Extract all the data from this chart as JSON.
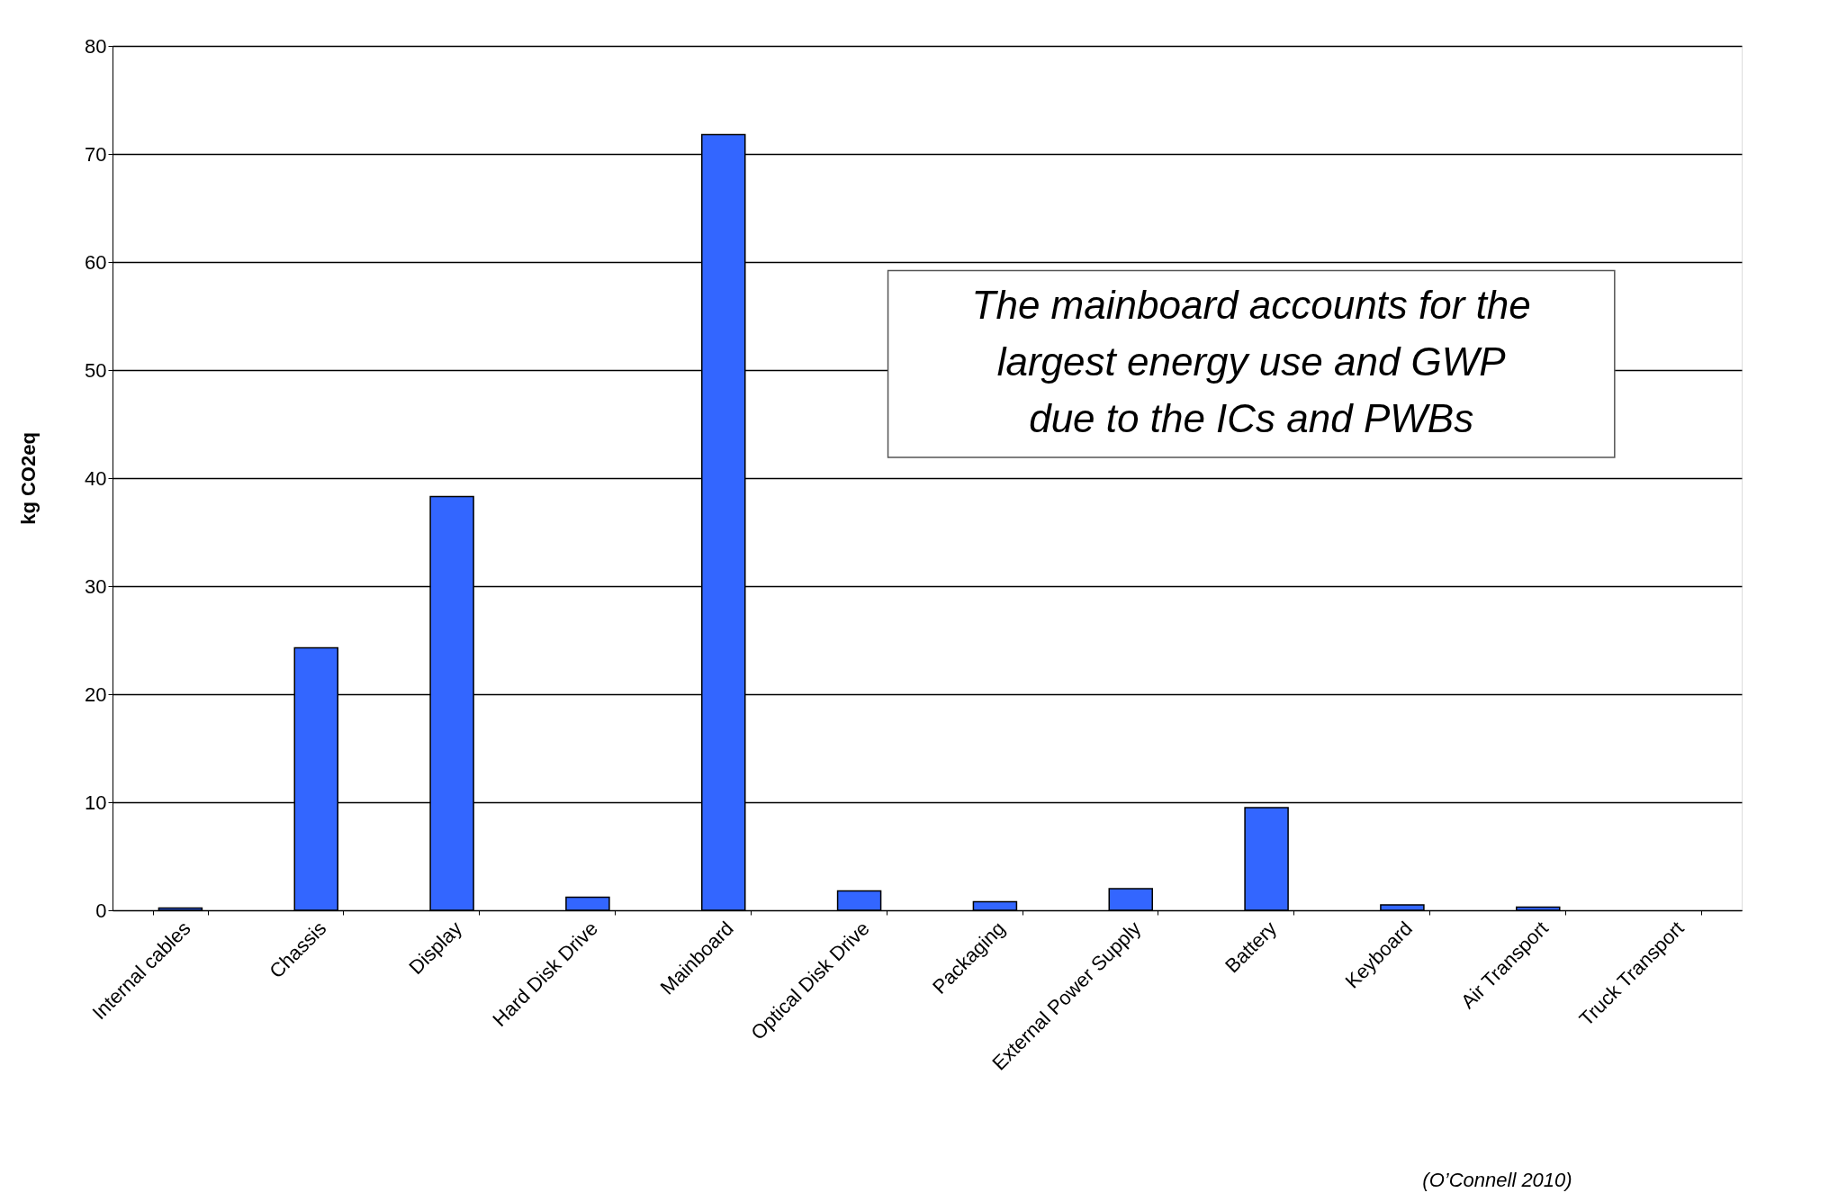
{
  "chart_data": {
    "type": "bar",
    "ylabel": "kg CO2eq",
    "categories": [
      "Internal cables",
      "Chassis",
      "Display",
      "Hard Disk Drive",
      "Mainboard",
      "Optical Disk Drive",
      "Packaging",
      "External Power Supply",
      "Battery",
      "Keyboard",
      "Air Transport",
      "Truck Transport"
    ],
    "values": [
      0.2,
      24.3,
      38.3,
      1.2,
      71.8,
      1.8,
      0.8,
      2.0,
      9.5,
      0.5,
      0.3,
      0
    ],
    "color": "#3366ff",
    "ylim": [
      0,
      80
    ],
    "yticks": [
      0,
      10,
      20,
      30,
      40,
      50,
      60,
      70,
      80
    ],
    "grid": "y",
    "annotations": [
      "The mainboard accounts for the\nlargest energy use and GWP\ndue to the ICs and PWBs",
      "(O’Connell 2010)"
    ]
  }
}
